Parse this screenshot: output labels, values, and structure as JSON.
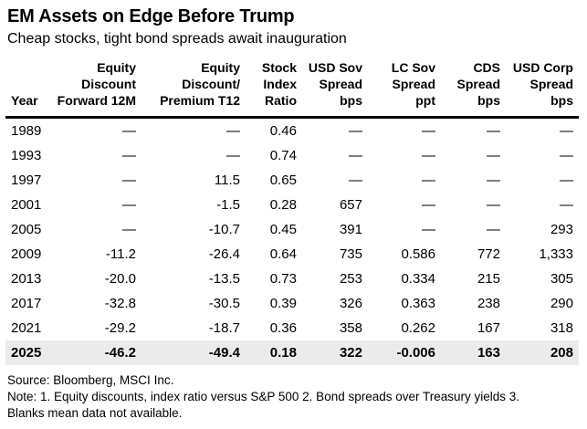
{
  "header": {
    "title": "EM Assets on Edge Before Trump",
    "subtitle": "Cheap stocks, tight bond spreads await inauguration"
  },
  "chart_data": {
    "type": "table",
    "title": "EM Assets on Edge Before Trump",
    "subtitle": "Cheap stocks, tight bond spreads await inauguration",
    "na_symbol": "—",
    "columns": [
      {
        "id": "year",
        "label": "Year",
        "lines": [
          "Year"
        ],
        "align": "left"
      },
      {
        "id": "equity-discount-forward-12m",
        "label": "Equity Discount Forward 12M",
        "lines": [
          "Equity",
          "Discount",
          "Forward 12M"
        ],
        "align": "right"
      },
      {
        "id": "equity-discount-premium-t12",
        "label": "Equity Discount/Premium T12",
        "lines": [
          "Equity",
          "Discount/",
          "Premium T12"
        ],
        "align": "right"
      },
      {
        "id": "stock-index-ratio",
        "label": "Stock Index Ratio",
        "lines": [
          "Stock",
          "Index",
          "Ratio"
        ],
        "align": "right"
      },
      {
        "id": "usd-sov-spread-bps",
        "label": "USD Sov Spread bps",
        "lines": [
          "USD Sov",
          "Spread",
          "bps"
        ],
        "align": "right"
      },
      {
        "id": "lc-sov-spread-ppt",
        "label": "LC Sov Spread ppt",
        "lines": [
          "LC Sov",
          "Spread",
          "ppt"
        ],
        "align": "right"
      },
      {
        "id": "cds-spread-bps",
        "label": "CDS Spread bps",
        "lines": [
          "CDS",
          "Spread",
          "bps"
        ],
        "align": "right"
      },
      {
        "id": "usd-corp-spread-bps",
        "label": "USD Corp Spread bps",
        "lines": [
          "USD Corp",
          "Spread",
          "bps"
        ],
        "align": "right"
      }
    ],
    "rows": [
      {
        "cells": [
          "1989",
          "—",
          "—",
          "0.46",
          "—",
          "—",
          "—",
          "—"
        ],
        "highlight": false
      },
      {
        "cells": [
          "1993",
          "—",
          "—",
          "0.74",
          "—",
          "—",
          "—",
          "—"
        ],
        "highlight": false
      },
      {
        "cells": [
          "1997",
          "—",
          "11.5",
          "0.65",
          "—",
          "—",
          "—",
          "—"
        ],
        "highlight": false
      },
      {
        "cells": [
          "2001",
          "—",
          "-1.5",
          "0.28",
          "657",
          "—",
          "—",
          "—"
        ],
        "highlight": false
      },
      {
        "cells": [
          "2005",
          "—",
          "-10.7",
          "0.45",
          "391",
          "—",
          "—",
          "293"
        ],
        "highlight": false
      },
      {
        "cells": [
          "2009",
          "-11.2",
          "-26.4",
          "0.64",
          "735",
          "0.586",
          "772",
          "1,333"
        ],
        "highlight": false
      },
      {
        "cells": [
          "2013",
          "-20.0",
          "-13.5",
          "0.73",
          "253",
          "0.334",
          "215",
          "305"
        ],
        "highlight": false
      },
      {
        "cells": [
          "2017",
          "-32.8",
          "-30.5",
          "0.39",
          "326",
          "0.363",
          "238",
          "290"
        ],
        "highlight": false
      },
      {
        "cells": [
          "2021",
          "-29.2",
          "-18.7",
          "0.36",
          "358",
          "0.262",
          "167",
          "318"
        ],
        "highlight": false
      },
      {
        "cells": [
          "2025",
          "-46.2",
          "-49.4",
          "0.18",
          "322",
          "-0.006",
          "163",
          "208"
        ],
        "highlight": true
      }
    ]
  },
  "footer": {
    "source": "Source: Bloomberg, MSCI Inc.",
    "note": "Note: 1. Equity discounts, index ratio versus S&P 500 2. Bond spreads over Treasury yields 3. Blanks mean data not available."
  },
  "colors": {
    "background": "#ffffff",
    "text": "#000000",
    "highlight_row_bg": "#ebebeb",
    "header_rule": "#000000"
  }
}
